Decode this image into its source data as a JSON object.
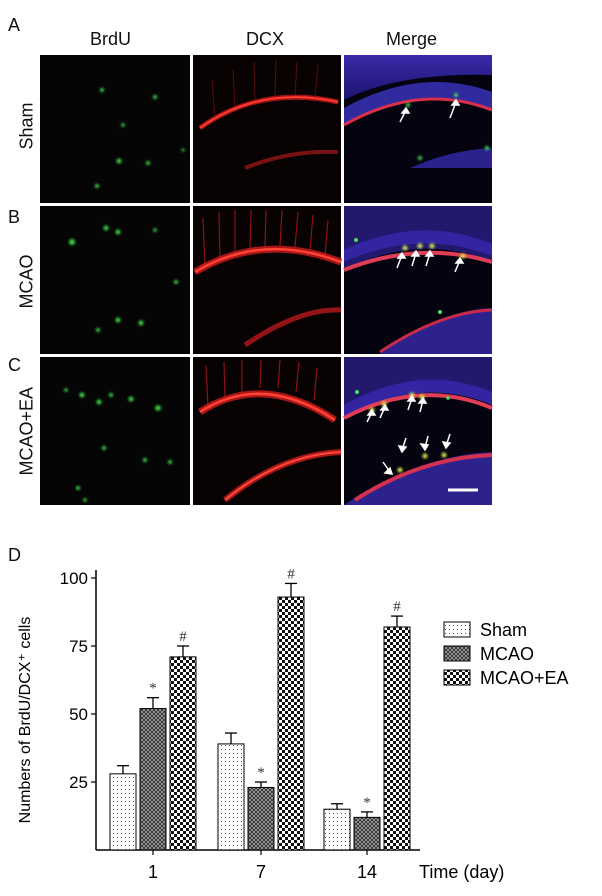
{
  "panels": {
    "letters": [
      "A",
      "B",
      "C",
      "D"
    ],
    "columns": [
      "BrdU",
      "DCX",
      "Merge"
    ],
    "rows": [
      "Sham",
      "MCAO",
      "MCAO+EA"
    ]
  },
  "chart_data": {
    "type": "bar",
    "ylabel": "Numbers of BrdU/DCX⁺ cells",
    "xlabel": "Time (day)",
    "categories": [
      "1",
      "7",
      "14"
    ],
    "ylim": [
      0,
      100
    ],
    "yticks": [
      25,
      50,
      75,
      100
    ],
    "legend_position": "right",
    "series": [
      {
        "name": "Sham",
        "pattern": "dots",
        "values": [
          28,
          39,
          15
        ],
        "errors": [
          3,
          4,
          2
        ],
        "marks": [
          "",
          "",
          ""
        ]
      },
      {
        "name": "MCAO",
        "pattern": "crosshatch",
        "values": [
          52,
          23,
          12
        ],
        "errors": [
          4,
          2,
          2
        ],
        "marks": [
          "*",
          "*",
          "*"
        ]
      },
      {
        "name": "MCAO+EA",
        "pattern": "checker",
        "values": [
          71,
          93,
          82
        ],
        "errors": [
          4,
          5,
          4
        ],
        "marks": [
          "#",
          "#",
          "#"
        ]
      }
    ]
  }
}
